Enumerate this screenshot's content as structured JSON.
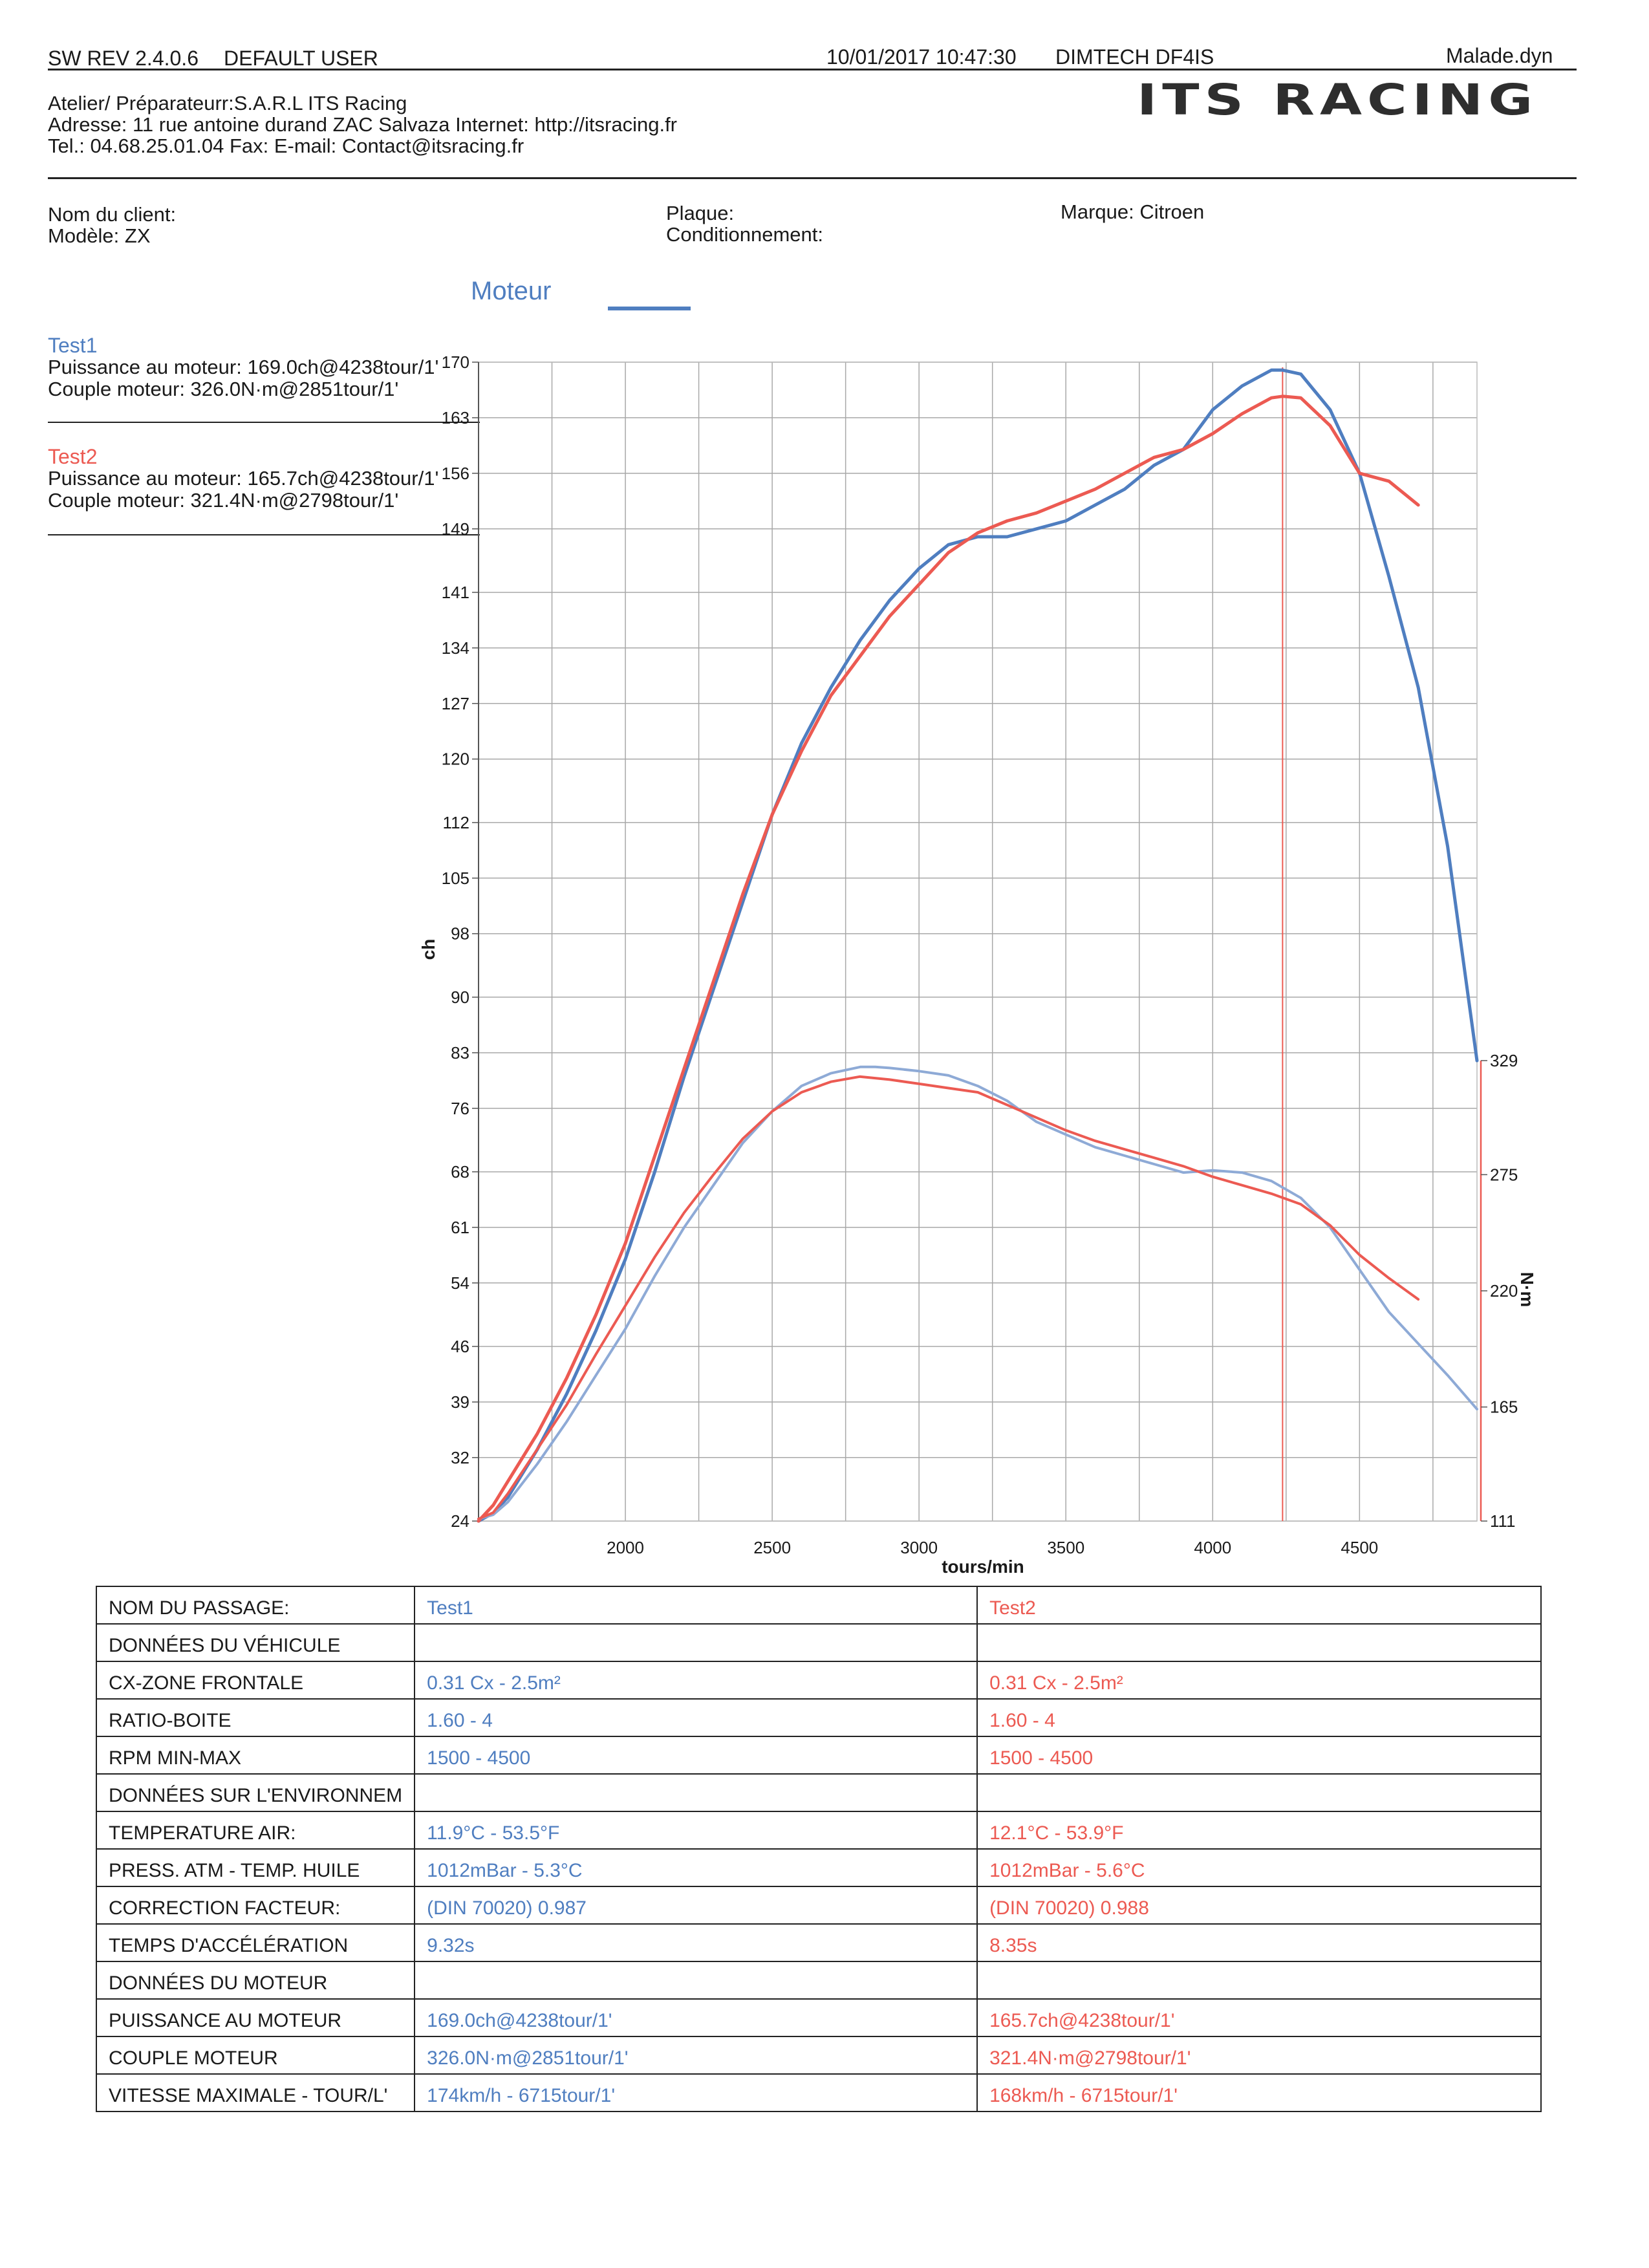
{
  "header": {
    "sw_rev": "SW REV 2.4.0.6",
    "user": "DEFAULT USER",
    "datetime": "10/01/2017 10:47:30",
    "device": "DIMTECH DF4IS",
    "file": "Malade.dyn",
    "workshop": "Atelier/ Préparateurr:S.A.R.L ITS Racing",
    "address": "Adresse: 11 rue antoine durand ZAC Salvaza Internet: http://itsracing.fr",
    "contact": "Tel.: 04.68.25.01.04 Fax:  E-mail: Contact@itsracing.fr",
    "logo": "ITS RACING"
  },
  "client": {
    "name_label": "Nom du client:",
    "model_label": "Modèle: ZX",
    "plate_label": "Plaque:",
    "conditioning_label": "Conditionnement:",
    "brand_label": "Marque: Citroen"
  },
  "legend": {
    "title": "Moteur",
    "test1": {
      "name": "Test1",
      "power": "Puissance au moteur: 169.0ch@4238tour/1'",
      "torque": "Couple moteur: 326.0N·m@2851tour/1'"
    },
    "test2": {
      "name": "Test2",
      "power": "Puissance au moteur: 165.7ch@4238tour/1'",
      "torque": "Couple moteur: 321.4N·m@2798tour/1'"
    }
  },
  "colors": {
    "test1": "#4f7ec0",
    "test1_torque": "#8eaad6",
    "test2": "#ec5a52",
    "grid": "#a8a8a8"
  },
  "chart_data": {
    "type": "line",
    "xlabel": "tours/min",
    "ylabel": "ch",
    "y2label": "N·m",
    "xlim": [
      1500,
      4900
    ],
    "ylim": [
      24,
      170
    ],
    "y2lim": [
      111,
      329
    ],
    "x_ticks": [
      2000,
      2500,
      3000,
      3500,
      4000,
      4500
    ],
    "y_ticks": [
      24,
      32,
      39,
      46,
      54,
      61,
      68,
      76,
      83,
      90,
      98,
      105,
      112,
      120,
      127,
      134,
      141,
      149,
      156,
      163,
      170
    ],
    "y_tick_labels": [
      "24",
      "32",
      "39",
      "46",
      "54",
      "61",
      "68",
      "76",
      "83",
      "90",
      "98",
      "105",
      "112",
      "120",
      "127",
      "134",
      "141",
      "149",
      "156",
      "163",
      "170"
    ],
    "y2_ticks": [
      111,
      165,
      220,
      275,
      329
    ],
    "y2_tick_labels": [
      "111",
      "165",
      "220",
      "275",
      "329"
    ],
    "marker_rpm": 4238,
    "grid": true,
    "series": [
      {
        "name": "Test1",
        "quantity": "power",
        "axis": "left",
        "x": [
          1500,
          1550,
          1600,
          1700,
          1800,
          1900,
          2000,
          2100,
          2200,
          2300,
          2400,
          2500,
          2600,
          2700,
          2800,
          2900,
          3000,
          3100,
          3200,
          3300,
          3400,
          3500,
          3600,
          3700,
          3800,
          3900,
          4000,
          4100,
          4200,
          4238,
          4300,
          4400,
          4500,
          4600,
          4700,
          4800,
          4900
        ],
        "y": [
          24,
          25,
          27,
          33,
          40,
          48,
          57,
          68,
          80,
          91,
          102,
          113,
          122,
          129,
          135,
          140,
          144,
          147,
          148,
          148,
          149,
          150,
          152,
          154,
          157,
          159,
          164,
          167,
          169,
          169,
          168.5,
          164,
          156,
          143,
          129,
          109,
          82
        ]
      },
      {
        "name": "Test2",
        "quantity": "power",
        "axis": "left",
        "x": [
          1500,
          1550,
          1600,
          1700,
          1800,
          1900,
          2000,
          2100,
          2200,
          2300,
          2400,
          2500,
          2600,
          2700,
          2800,
          2900,
          3000,
          3100,
          3200,
          3300,
          3400,
          3500,
          3600,
          3700,
          3800,
          3900,
          4000,
          4100,
          4200,
          4238,
          4300,
          4400,
          4500,
          4600,
          4700
        ],
        "y": [
          24,
          26,
          29,
          35,
          42,
          50,
          59,
          70,
          81,
          92,
          103,
          113,
          121,
          128,
          133,
          138,
          142,
          146,
          148.5,
          150,
          151,
          152.5,
          154,
          156,
          158,
          159,
          161,
          163.5,
          165.5,
          165.7,
          165.5,
          162,
          156,
          155,
          152
        ]
      },
      {
        "name": "Test1",
        "quantity": "torque",
        "axis": "right",
        "x": [
          1500,
          1550,
          1600,
          1700,
          1800,
          1900,
          2000,
          2100,
          2200,
          2300,
          2400,
          2500,
          2600,
          2700,
          2800,
          2851,
          2900,
          3000,
          3100,
          3200,
          3300,
          3400,
          3500,
          3600,
          3700,
          3800,
          3900,
          4000,
          4100,
          4200,
          4300,
          4400,
          4500,
          4600,
          4700,
          4800,
          4900
        ],
        "y": [
          112,
          114,
          120,
          138,
          158,
          180,
          202,
          227,
          250,
          270,
          290,
          305,
          317,
          323,
          326,
          326,
          325.5,
          324,
          322,
          317,
          310,
          300,
          294,
          288,
          284,
          280,
          276,
          277,
          276,
          272,
          264,
          250,
          230,
          210,
          195,
          180,
          164
        ]
      },
      {
        "name": "Test2",
        "quantity": "torque",
        "axis": "right",
        "x": [
          1500,
          1550,
          1600,
          1700,
          1800,
          1900,
          2000,
          2100,
          2200,
          2300,
          2400,
          2500,
          2600,
          2700,
          2798,
          2900,
          3000,
          3100,
          3200,
          3300,
          3400,
          3500,
          3600,
          3700,
          3800,
          3900,
          4000,
          4100,
          4200,
          4300,
          4400,
          4500,
          4600,
          4700
        ],
        "y": [
          112,
          115,
          124,
          145,
          166,
          190,
          213,
          236,
          257,
          275,
          292,
          305,
          314,
          319,
          321.4,
          320,
          318,
          316,
          314,
          308,
          302,
          296,
          291,
          287,
          283,
          279,
          274,
          270,
          266,
          261,
          251,
          237,
          226,
          216
        ]
      }
    ]
  },
  "results": {
    "rows": [
      {
        "label": "NOM DU PASSAGE:",
        "v1": "Test1",
        "v2": "Test2"
      },
      {
        "label": "DONNÉES DU VÉHICULE",
        "v1": "",
        "v2": ""
      },
      {
        "label": "CX-ZONE FRONTALE",
        "v1": "0.31 Cx - 2.5m²",
        "v2": "0.31 Cx - 2.5m²"
      },
      {
        "label": "RATIO-BOITE",
        "v1": "1.60 - 4",
        "v2": "1.60 - 4"
      },
      {
        "label": "RPM MIN-MAX",
        "v1": "1500 - 4500",
        "v2": "1500 - 4500"
      },
      {
        "label": "DONNÉES SUR L'ENVIRONNEM",
        "v1": "",
        "v2": ""
      },
      {
        "label": "TEMPERATURE AIR:",
        "v1": "11.9°C - 53.5°F",
        "v2": "12.1°C - 53.9°F"
      },
      {
        "label": "PRESS. ATM - TEMP. HUILE",
        "v1": "1012mBar - 5.3°C",
        "v2": "1012mBar - 5.6°C"
      },
      {
        "label": "CORRECTION FACTEUR:",
        "v1": "(DIN 70020) 0.987",
        "v2": "(DIN 70020) 0.988"
      },
      {
        "label": "TEMPS D'ACCÉLÉRATION",
        "v1": "9.32s",
        "v2": "8.35s"
      },
      {
        "label": "DONNÉES DU MOTEUR",
        "v1": "",
        "v2": ""
      },
      {
        "label": "PUISSANCE AU MOTEUR",
        "v1": "169.0ch@4238tour/1'",
        "v2": "165.7ch@4238tour/1'"
      },
      {
        "label": "COUPLE MOTEUR",
        "v1": "326.0N·m@2851tour/1'",
        "v2": "321.4N·m@2798tour/1'"
      },
      {
        "label": "VITESSE MAXIMALE - TOUR/L'",
        "v1": "174km/h - 6715tour/1'",
        "v2": "168km/h - 6715tour/1'"
      }
    ]
  }
}
